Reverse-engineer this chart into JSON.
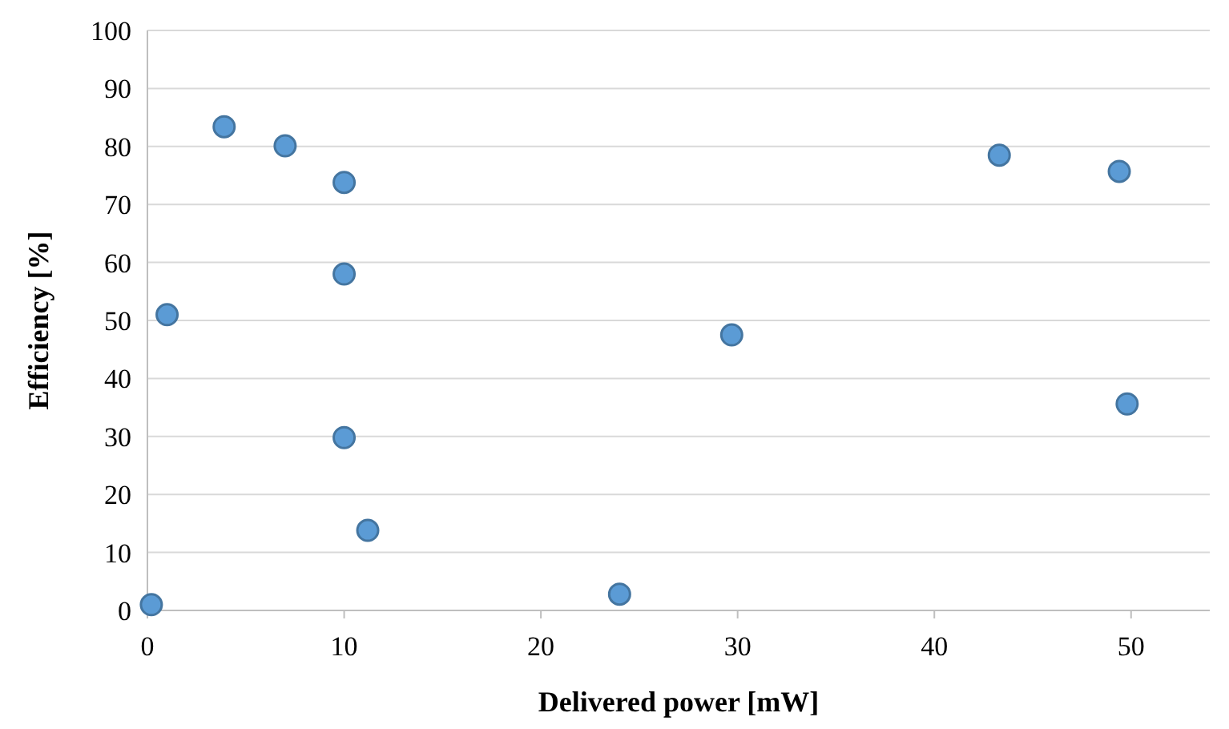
{
  "chart_data": {
    "type": "scatter",
    "xlabel": "Delivered power [mW]",
    "ylabel": "Efficiency [%]",
    "x": [
      0.2,
      1,
      3.9,
      7,
      10,
      10,
      10,
      11.2,
      24,
      29.7,
      43.3,
      49.4,
      49.8
    ],
    "values": [
      1,
      51,
      83.4,
      80.1,
      73.8,
      58,
      29.8,
      13.8,
      2.8,
      47.5,
      78.5,
      75.7,
      35.6
    ],
    "color": "#5b9bd5",
    "marker": "circle",
    "grid": "y",
    "xlim": [
      0,
      54
    ],
    "xticks": [
      0,
      10,
      20,
      30,
      40,
      50
    ],
    "ylim": [
      0,
      100
    ],
    "yticks": [
      0,
      10,
      20,
      30,
      40,
      50,
      60,
      70,
      80,
      90,
      100
    ]
  }
}
